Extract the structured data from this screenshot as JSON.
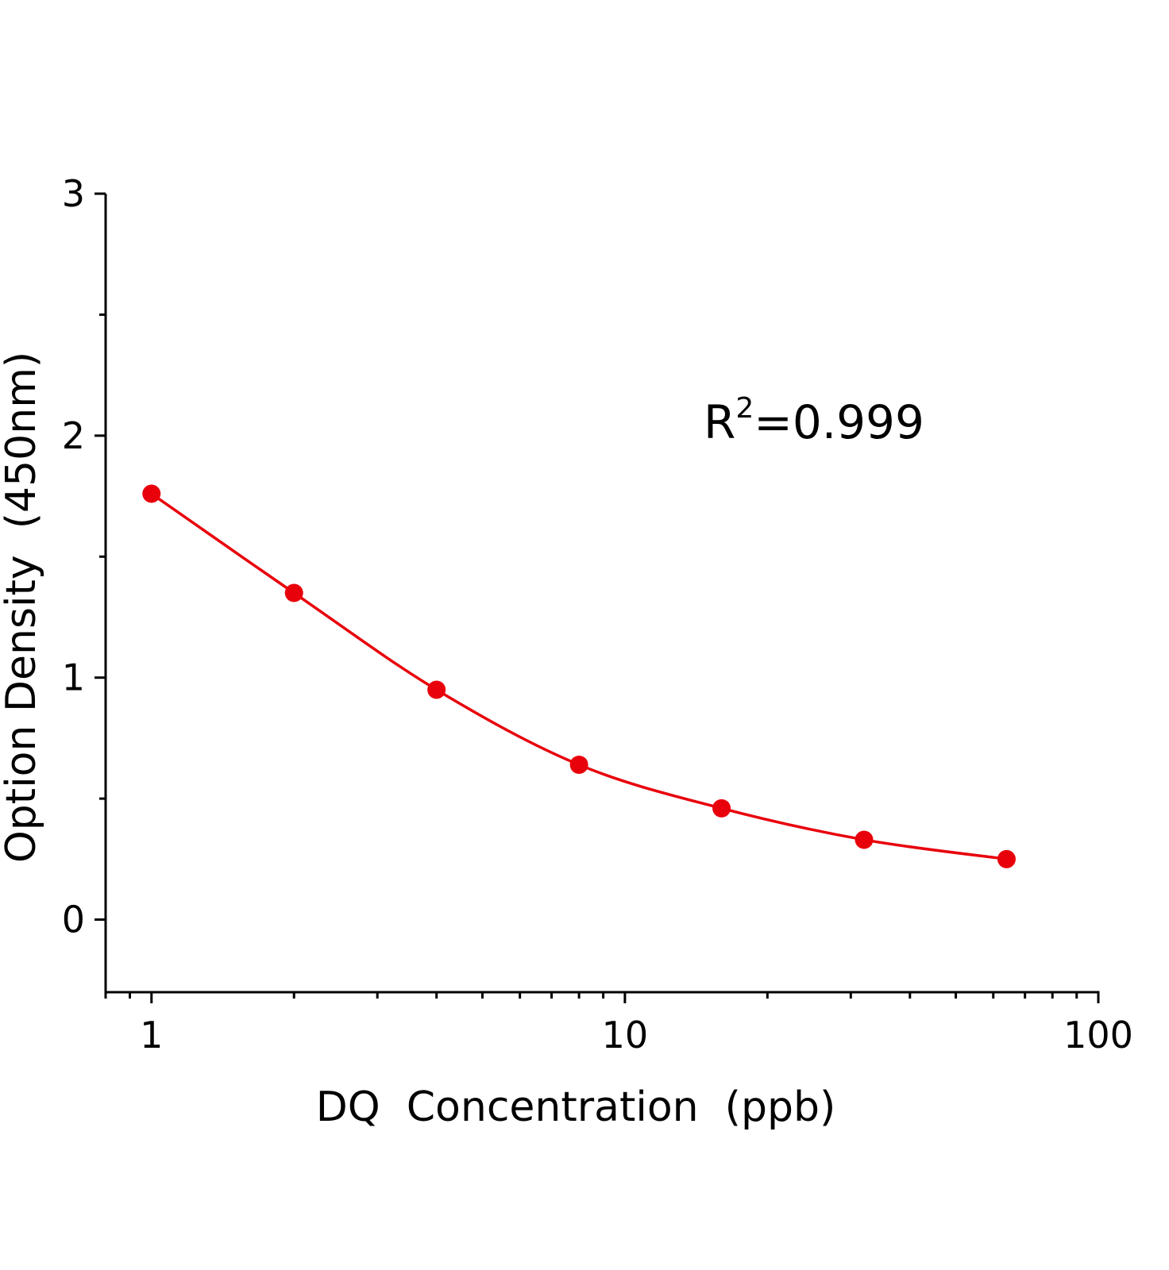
{
  "chart_data": {
    "type": "scatter",
    "x_label": "DQ  Concentration  (ppb)",
    "y_label": "Option Density  (450nm)",
    "annotation": {
      "base": "R",
      "sup": "2",
      "rest": "=0.999"
    },
    "x": [
      1,
      2,
      4,
      8,
      16,
      32,
      64
    ],
    "series": [
      {
        "color": "#e8000b",
        "values": [
          1.76,
          1.35,
          0.95,
          0.64,
          0.46,
          0.33,
          0.25
        ]
      }
    ],
    "xlim": [
      0.8,
      100
    ],
    "xticks": [
      1,
      10,
      100
    ],
    "xscale": "log",
    "ylim": [
      -0.3,
      3
    ],
    "yticks": [
      0,
      1,
      2,
      3
    ],
    "curve": true
  }
}
